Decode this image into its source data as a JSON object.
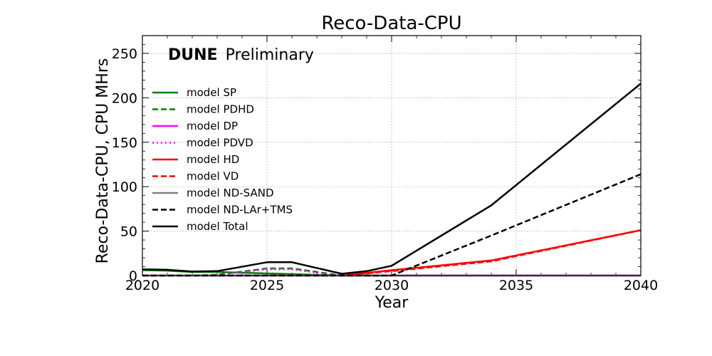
{
  "chart_data": {
    "type": "line",
    "title": "Reco-Data-CPU",
    "xlabel": "Year",
    "ylabel": "Reco-Data-CPU, CPU MHrs",
    "xlim": [
      2020,
      2040
    ],
    "ylim": [
      0,
      270
    ],
    "xticks": [
      2020,
      2025,
      2030,
      2035,
      2040
    ],
    "yticks": [
      0,
      50,
      100,
      150,
      200,
      250
    ],
    "grid": true,
    "legend_position": "upper-left",
    "watermark": {
      "bold": "DUNE",
      "normal": "Preliminary"
    },
    "series": [
      {
        "name": "model SP",
        "color": "#008000",
        "dash": "solid",
        "points": [
          [
            2020,
            6
          ],
          [
            2021,
            5.5
          ],
          [
            2022,
            4
          ],
          [
            2023,
            4
          ],
          [
            2028,
            0
          ],
          [
            2040,
            0
          ]
        ]
      },
      {
        "name": "model PDHD",
        "color": "#008000",
        "dash": "dashed",
        "points": [
          [
            2020,
            0
          ],
          [
            2022,
            0
          ],
          [
            2023,
            1
          ],
          [
            2025,
            8
          ],
          [
            2026,
            8
          ],
          [
            2028,
            0
          ],
          [
            2040,
            0
          ]
        ]
      },
      {
        "name": "model DP",
        "color": "#ff00ff",
        "dash": "solid",
        "points": [
          [
            2020,
            0
          ],
          [
            2040,
            0
          ]
        ]
      },
      {
        "name": "model PDVD",
        "color": "#ff00ff",
        "dash": "dotted",
        "points": [
          [
            2020,
            0
          ],
          [
            2022,
            0
          ],
          [
            2023,
            1
          ],
          [
            2025,
            7
          ],
          [
            2026,
            7
          ],
          [
            2028,
            0
          ],
          [
            2040,
            0
          ]
        ]
      },
      {
        "name": "model HD",
        "color": "#ff0000",
        "dash": "solid",
        "points": [
          [
            2028,
            0
          ],
          [
            2030,
            6
          ],
          [
            2034,
            17
          ],
          [
            2040,
            51
          ]
        ]
      },
      {
        "name": "model VD",
        "color": "#ff0000",
        "dash": "dashed",
        "points": [
          [
            2028,
            0
          ],
          [
            2030,
            5
          ],
          [
            2034,
            16
          ],
          [
            2040,
            51
          ]
        ]
      },
      {
        "name": "model ND-SAND",
        "color": "#808080",
        "dash": "solid",
        "points": [
          [
            2020,
            0
          ],
          [
            2040,
            0
          ]
        ]
      },
      {
        "name": "model ND-LAr+TMS",
        "color": "#000000",
        "dash": "dashed",
        "points": [
          [
            2020,
            0
          ],
          [
            2030,
            0
          ],
          [
            2034,
            45
          ],
          [
            2040,
            114
          ]
        ]
      },
      {
        "name": "model Total",
        "color": "#000000",
        "dash": "solid",
        "points": [
          [
            2020,
            7
          ],
          [
            2021,
            6.5
          ],
          [
            2022,
            4.5
          ],
          [
            2023,
            5
          ],
          [
            2025,
            15
          ],
          [
            2026,
            15
          ],
          [
            2028,
            2
          ],
          [
            2029,
            5
          ],
          [
            2030,
            11
          ],
          [
            2034,
            79
          ],
          [
            2040,
            216
          ]
        ]
      }
    ]
  }
}
